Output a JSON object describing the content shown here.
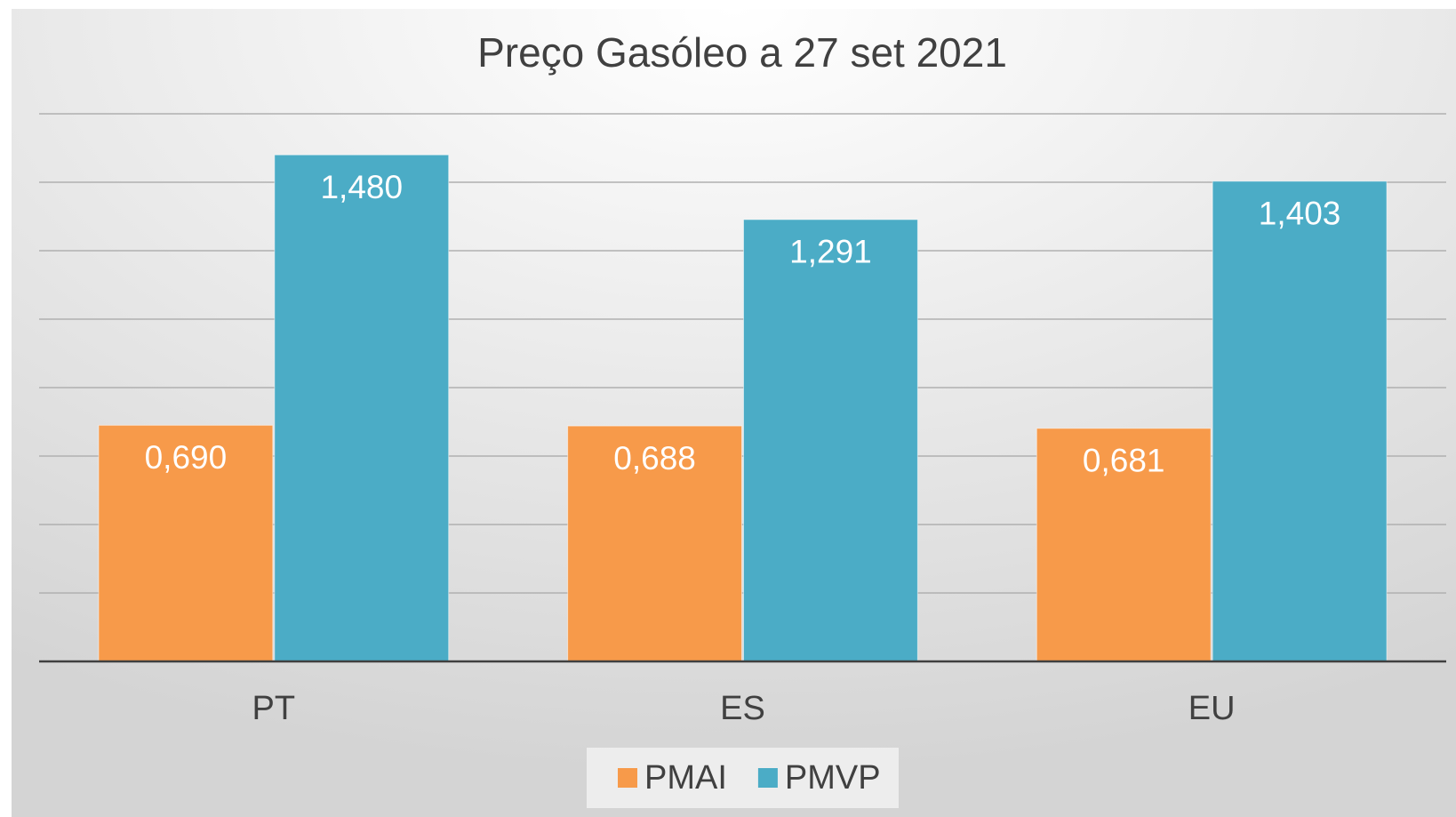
{
  "chart_data": {
    "type": "bar",
    "title": "Preço Gasóleo a 27 set 2021",
    "categories": [
      "PT",
      "ES",
      "EU"
    ],
    "series": [
      {
        "name": "PMAI",
        "color": "#f79a4a",
        "values": [
          0.69,
          0.688,
          0.681
        ],
        "value_labels": [
          "0,690",
          "0,688",
          "0,681"
        ]
      },
      {
        "name": "PMVP",
        "color": "#4bacc6",
        "values": [
          1.48,
          1.291,
          1.403
        ],
        "value_labels": [
          "1,480",
          "1,291",
          "1,403"
        ]
      }
    ],
    "ylim": [
      0,
      1.6
    ],
    "yticks": [
      0,
      0.2,
      0.4,
      0.6,
      0.8,
      1,
      1.2,
      1.4,
      1.6
    ],
    "grid": true,
    "legend": "bottom"
  }
}
